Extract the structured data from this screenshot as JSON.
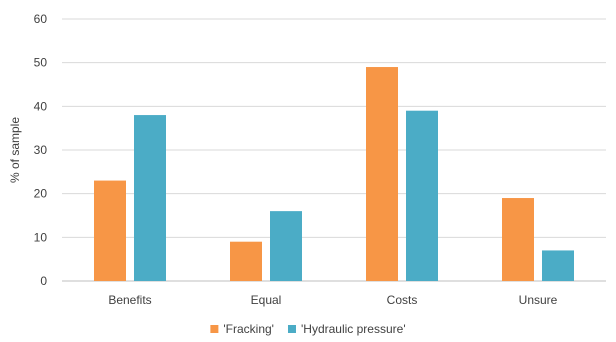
{
  "chart_data": {
    "type": "bar",
    "title": "",
    "xlabel": "",
    "ylabel": "% of sample",
    "ylim": [
      0,
      60
    ],
    "yticks": [
      0,
      10,
      20,
      30,
      40,
      50,
      60
    ],
    "grid": true,
    "legend_position": "bottom",
    "categories": [
      "Benefits",
      "Equal",
      "Costs",
      "Unsure"
    ],
    "series": [
      {
        "name": "'Fracking'",
        "color": "#f79646",
        "values": [
          23,
          9,
          49,
          19
        ]
      },
      {
        "name": "'Hydraulic pressure'",
        "color": "#4bacc6",
        "values": [
          38,
          16,
          39,
          7
        ]
      }
    ]
  }
}
